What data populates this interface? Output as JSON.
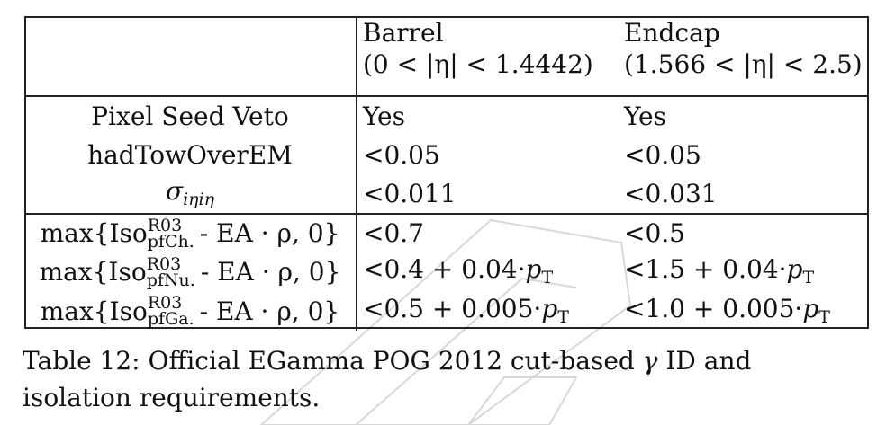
{
  "table": {
    "header": {
      "barrel_title": "Barrel",
      "barrel_range": "(0 < |η| < 1.4442)",
      "endcap_title": "Endcap",
      "endcap_range": "(1.566 < |η| < 2.5)"
    },
    "rows_basic": [
      {
        "label": "Pixel Seed Veto",
        "barrel": "Yes",
        "endcap": "Yes"
      },
      {
        "label": "hadTowOverEM",
        "barrel": "<0.05",
        "endcap": "<0.05"
      },
      {
        "label_symbol": "σ",
        "label_sub": "iηiη",
        "barrel": "<0.011",
        "endcap": "<0.031"
      }
    ],
    "rows_iso": [
      {
        "prefix": "max{Iso",
        "sup": "R03",
        "sub": "pfCh.",
        "suffix": " - EA · ρ, 0}",
        "barrel": "<0.7",
        "barrel_pt": "",
        "endcap": "<0.5",
        "endcap_pt": ""
      },
      {
        "prefix": "max{Iso",
        "sup": "R03",
        "sub": "pfNu.",
        "suffix": " - EA · ρ, 0}",
        "barrel": "<0.4 + 0.04·",
        "barrel_pt": "p",
        "endcap": "<1.5 + 0.04·",
        "endcap_pt": "p"
      },
      {
        "prefix": "max{Iso",
        "sup": "R03",
        "sub": "pfGa.",
        "suffix": " - EA · ρ, 0}",
        "barrel": "<0.5 + 0.005·",
        "barrel_pt": "p",
        "endcap": "<1.0 + 0.005·",
        "endcap_pt": "p"
      }
    ],
    "pt_subscript": "T"
  },
  "caption": {
    "text_before": "Table 12: Official EGamma POG 2012 cut-based ",
    "gamma": "γ",
    "text_after": " ID and isolation requirements."
  }
}
